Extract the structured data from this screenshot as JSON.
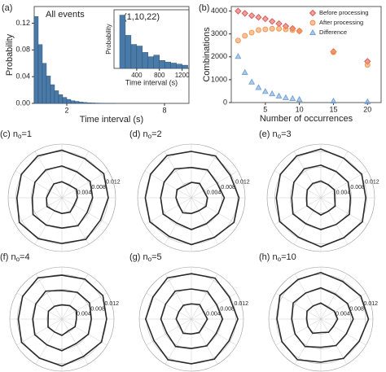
{
  "chart_data": [
    {
      "type": "histogram",
      "panel": "(a)",
      "annotation": "All events",
      "ylabel": "Probability",
      "xlabel": "Time interval (s)",
      "color": "#4a7aa7",
      "bins": [
        0,
        0.25,
        0.5,
        0.75,
        1,
        1.25,
        1.5,
        1.75,
        2,
        2.25,
        2.5,
        2.75,
        3,
        3.25,
        3.5,
        3.75,
        4,
        4.25,
        4.5,
        4.75,
        5
      ],
      "values": [
        0.13,
        0.088,
        0.06,
        0.041,
        0.028,
        0.019,
        0.013,
        0.009,
        0.006,
        0.004,
        0.003,
        0.002,
        0.0014,
        0.001,
        0.0007,
        0.0005,
        0.0003,
        0.0002,
        0.0001,
        0.0001
      ],
      "xlim": [
        0,
        9.5
      ],
      "xticks": [
        2,
        8
      ],
      "ylim": [
        0,
        0.145
      ],
      "yticks": [
        {
          "value": 0,
          "label": "0.00"
        },
        {
          "value": 0.04,
          "label": "0.04"
        },
        {
          "value": 0.08,
          "label": "0.08"
        },
        {
          "value": 0.12,
          "label": "0.12"
        }
      ]
    },
    {
      "type": "histogram",
      "title": "(1,10,22)",
      "ylabel": "Probability",
      "xlabel": "Time interval (s)",
      "color": "#4a7aa7",
      "bins": [
        100,
        200,
        300,
        400,
        500,
        600,
        700,
        800,
        900,
        1000,
        1100,
        1200,
        1300
      ],
      "values": [
        1.0,
        0.62,
        0.45,
        0.42,
        0.3,
        0.22,
        0.25,
        0.15,
        0.12,
        0.1,
        0.08,
        0.06
      ],
      "xlim": [
        0,
        1320
      ],
      "xticks": [
        400,
        800,
        1200
      ],
      "ylim": [
        0,
        1.1
      ]
    },
    {
      "type": "scatter",
      "panel": "(b)",
      "ylabel": "Combinations",
      "xlabel": "Number of occurrences",
      "legend": "top-right",
      "x": [
        1,
        2,
        3,
        4,
        5,
        6,
        7,
        8,
        9,
        10,
        15,
        20
      ],
      "series": [
        {
          "name": "Before processing",
          "color": "#d9534f",
          "marker": "diamond",
          "values": [
            4000,
            3900,
            3800,
            3730,
            3660,
            3550,
            3450,
            3340,
            3240,
            3130,
            2230,
            1800
          ]
        },
        {
          "name": "After processing",
          "color": "#f0924a",
          "marker": "circle",
          "values": [
            2710,
            2920,
            3060,
            3170,
            3200,
            3230,
            3230,
            3200,
            3170,
            3130,
            2200,
            1650
          ]
        },
        {
          "name": "Difference",
          "color": "#6f9fd6",
          "marker": "triangle",
          "values": [
            2020,
            1320,
            900,
            660,
            490,
            390,
            290,
            220,
            180,
            140,
            70,
            40
          ]
        }
      ],
      "xlim": [
        0,
        22
      ],
      "xticks": [
        5,
        10,
        15,
        20
      ],
      "ylim": [
        0,
        4200
      ],
      "yticks": [
        0,
        1000,
        2000,
        3000,
        4000
      ]
    },
    {
      "type": "polar",
      "title": "(c) n",
      "title_sub": "o",
      "title_tail": "=1",
      "rlim": [
        0,
        0.014
      ],
      "rticks": [
        {
          "value": 0.004,
          "label": "0.004"
        },
        {
          "value": 0.008,
          "label": "0.008"
        },
        {
          "value": 0.012,
          "label": "0.012"
        }
      ],
      "series": [
        {
          "values": [
            0.0042,
            0.0038,
            0.0044,
            0.004,
            0.0037,
            0.0043,
            0.0041,
            0.0039,
            0.0045,
            0.004,
            0.0036,
            0.0042
          ]
        },
        {
          "values": [
            0.0083,
            0.0078,
            0.0085,
            0.008,
            0.0076,
            0.0084,
            0.0079,
            0.0082,
            0.0087,
            0.0077,
            0.0081,
            0.0084
          ]
        },
        {
          "values": [
            0.0124,
            0.0118,
            0.0126,
            0.0121,
            0.0116,
            0.0125,
            0.0119,
            0.0123,
            0.0128,
            0.0117,
            0.0122,
            0.0126
          ]
        }
      ]
    },
    {
      "type": "polar",
      "title": "(d) n",
      "title_sub": "o",
      "title_tail": "=2",
      "rlim": [
        0,
        0.014
      ],
      "rticks": [
        {
          "value": 0.004,
          "label": "0.004"
        },
        {
          "value": 0.008,
          "label": "0.008"
        },
        {
          "value": 0.012,
          "label": "0.012"
        }
      ],
      "series": [
        {
          "values": [
            0.004,
            0.0043,
            0.0037,
            0.0042,
            0.0044,
            0.0039,
            0.0041,
            0.0045,
            0.0038,
            0.004,
            0.0043,
            0.0036
          ]
        },
        {
          "values": [
            0.0079,
            0.0084,
            0.0077,
            0.0086,
            0.0081,
            0.0078,
            0.0083,
            0.0076,
            0.0085,
            0.008,
            0.0082,
            0.0087
          ]
        },
        {
          "values": [
            0.0121,
            0.0126,
            0.0117,
            0.0124,
            0.0128,
            0.0119,
            0.0122,
            0.0116,
            0.0125,
            0.012,
            0.0123,
            0.0127
          ]
        }
      ]
    },
    {
      "type": "polar",
      "title": "(e) n",
      "title_sub": "o",
      "title_tail": "=3",
      "rlim": [
        0,
        0.014
      ],
      "rticks": [
        {
          "value": 0.004,
          "label": "0.004"
        },
        {
          "value": 0.008,
          "label": "0.008"
        },
        {
          "value": 0.012,
          "label": "0.012"
        }
      ],
      "series": [
        {
          "values": [
            0.0044,
            0.0039,
            0.0041,
            0.0036,
            0.0043,
            0.004,
            0.0045,
            0.0038,
            0.0042,
            0.0037,
            0.0041,
            0.0043
          ]
        },
        {
          "values": [
            0.0085,
            0.0079,
            0.0082,
            0.0077,
            0.0086,
            0.008,
            0.0083,
            0.0078,
            0.0084,
            0.0076,
            0.0081,
            0.0087
          ]
        },
        {
          "values": [
            0.0127,
            0.0119,
            0.0123,
            0.0117,
            0.0125,
            0.012,
            0.0128,
            0.0118,
            0.0124,
            0.0116,
            0.0122,
            0.0126
          ]
        }
      ]
    },
    {
      "type": "polar",
      "title": "(f) n",
      "title_sub": "o",
      "title_tail": "=4",
      "rlim": [
        0,
        0.014
      ],
      "rticks": [
        {
          "value": 0.004,
          "label": "0.004"
        },
        {
          "value": 0.008,
          "label": "0.008"
        },
        {
          "value": 0.012,
          "label": "0.012"
        }
      ],
      "series": [
        {
          "values": [
            0.0038,
            0.0042,
            0.0045,
            0.0039,
            0.0041,
            0.0036,
            0.0044,
            0.004,
            0.0043,
            0.0037,
            0.0042,
            0.004
          ]
        },
        {
          "values": [
            0.0077,
            0.0083,
            0.0086,
            0.0079,
            0.0082,
            0.0076,
            0.0085,
            0.008,
            0.0084,
            0.0078,
            0.0081,
            0.0087
          ]
        },
        {
          "values": [
            0.0118,
            0.0124,
            0.0127,
            0.012,
            0.0123,
            0.0116,
            0.0126,
            0.0121,
            0.0125,
            0.0117,
            0.0122,
            0.0128
          ]
        }
      ]
    },
    {
      "type": "polar",
      "title": "(g) n",
      "title_sub": "o",
      "title_tail": "=5",
      "rlim": [
        0,
        0.014
      ],
      "rticks": [
        {
          "value": 0.004,
          "label": "0.004"
        },
        {
          "value": 0.008,
          "label": "0.008"
        },
        {
          "value": 0.012,
          "label": "0.012"
        }
      ],
      "series": [
        {
          "values": [
            0.0041,
            0.0045,
            0.0038,
            0.0043,
            0.0037,
            0.0042,
            0.004,
            0.0044,
            0.0036,
            0.0041,
            0.0039,
            0.0043
          ]
        },
        {
          "values": [
            0.0081,
            0.0086,
            0.0078,
            0.0084,
            0.0077,
            0.0083,
            0.0079,
            0.0085,
            0.0076,
            0.0082,
            0.008,
            0.0087
          ]
        },
        {
          "values": [
            0.0122,
            0.0127,
            0.0118,
            0.0125,
            0.0117,
            0.0124,
            0.012,
            0.0126,
            0.0116,
            0.0123,
            0.0119,
            0.0128
          ]
        }
      ]
    },
    {
      "type": "polar",
      "title": "(h) n",
      "title_sub": "o",
      "title_tail": "=10",
      "rlim": [
        0,
        0.014
      ],
      "rticks": [
        {
          "value": 0.004,
          "label": "0.004"
        },
        {
          "value": 0.008,
          "label": "0.008"
        },
        {
          "value": 0.012,
          "label": "0.012"
        }
      ],
      "series": [
        {
          "values": [
            0.0043,
            0.0037,
            0.0042,
            0.0045,
            0.0039,
            0.0041,
            0.0036,
            0.0044,
            0.004,
            0.0038,
            0.0043,
            0.0041
          ]
        },
        {
          "values": [
            0.0084,
            0.0077,
            0.0083,
            0.0087,
            0.0079,
            0.0082,
            0.0076,
            0.0085,
            0.008,
            0.0078,
            0.0086,
            0.0081
          ]
        },
        {
          "values": [
            0.0125,
            0.0117,
            0.0124,
            0.0128,
            0.0119,
            0.0122,
            0.0116,
            0.0126,
            0.0121,
            0.0118,
            0.0127,
            0.0123
          ]
        }
      ]
    }
  ]
}
